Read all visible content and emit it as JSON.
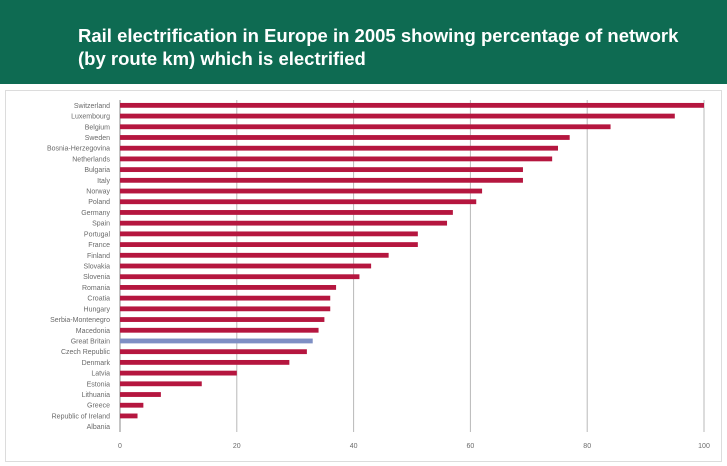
{
  "chart_data": {
    "type": "bar",
    "orientation": "horizontal",
    "title": "Rail electrification in Europe in 2005 showing percentage of network (by route km) which is electrified",
    "xlabel": "",
    "ylabel": "",
    "xlim": [
      0,
      100
    ],
    "xticks": [
      0,
      20,
      40,
      60,
      80,
      100
    ],
    "grid": true,
    "colors": {
      "bar": "#b5163f",
      "highlight": "#7e8fc4",
      "header": "#0e6b52"
    },
    "highlight_category": "Great Britain",
    "categories": [
      "Switzerland",
      "Luxembourg",
      "Belgium",
      "Sweden",
      "Bosnia-Herzegovina",
      "Netherlands",
      "Bulgaria",
      "Italy",
      "Norway",
      "Poland",
      "Germany",
      "Spain",
      "Portugal",
      "France",
      "Finland",
      "Slovakia",
      "Slovenia",
      "Romania",
      "Croatia",
      "Hungary",
      "Serbia-Montenegro",
      "Macedonia",
      "Great Britain",
      "Czech Republic",
      "Denmark",
      "Latvia",
      "Estonia",
      "Lithuania",
      "Greece",
      "Republic of Ireland",
      "Albania"
    ],
    "values": [
      100,
      95,
      84,
      77,
      75,
      74,
      69,
      69,
      62,
      61,
      57,
      56,
      51,
      51,
      46,
      43,
      41,
      37,
      36,
      36,
      35,
      34,
      33,
      32,
      29,
      20,
      14,
      7,
      4,
      3,
      0
    ]
  }
}
